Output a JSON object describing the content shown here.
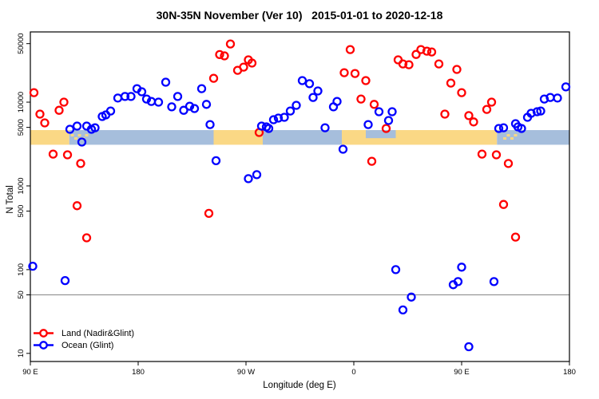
{
  "chart_data": {
    "type": "scatter",
    "title": "30N-35N November (Ver 10)   2015-01-01 to 2020-12-18",
    "xlabel": "Longitude (deg E)",
    "ylabel": "N Total",
    "x_axis": {
      "lim": [
        90,
        540
      ],
      "ticks": [
        {
          "deg": 90,
          "label": "90 E"
        },
        {
          "deg": 180,
          "label": "180"
        },
        {
          "deg": 270,
          "label": "90 W"
        },
        {
          "deg": 360,
          "label": "0"
        },
        {
          "deg": 450,
          "label": "90 E"
        },
        {
          "deg": 540,
          "label": "180"
        }
      ]
    },
    "y_axis": {
      "scale": "log",
      "lim": [
        8,
        69000
      ],
      "ticks": [
        {
          "n": 50000,
          "label": "50000"
        },
        {
          "n": 10000,
          "label": "10000"
        },
        {
          "n": 5000,
          "label": "5000"
        },
        {
          "n": 1000,
          "label": "1000"
        },
        {
          "n": 500,
          "label": "500"
        },
        {
          "n": 100,
          "label": "100"
        },
        {
          "n": 50,
          "label": "50"
        },
        {
          "n": 10,
          "label": "10"
        }
      ]
    },
    "reference_line": {
      "n": 50,
      "color": "#878787"
    },
    "map_strip": {
      "n_range": [
        3100,
        4640
      ],
      "land_color": "#FAD885",
      "ocean_color": "#A6BEDC",
      "segments": [
        {
          "from": 90,
          "to": 122.5,
          "surface": "land"
        },
        {
          "from": 122.5,
          "to": 243,
          "surface": "ocean"
        },
        {
          "from": 243,
          "to": 284,
          "surface": "land"
        },
        {
          "from": 284,
          "to": 350,
          "surface": "ocean"
        },
        {
          "from": 350,
          "to": 479.5,
          "surface": "land"
        },
        {
          "from": 479.5,
          "to": 540,
          "surface": "ocean"
        }
      ],
      "island_specks_deg": [
        125,
        128,
        131,
        134,
        137,
        486,
        489,
        492,
        495
      ],
      "sea_notch": {
        "from": 370,
        "to": 395
      }
    },
    "series": [
      {
        "name": "Land (Nadir&Glint)",
        "color": "#FF0000",
        "points": [
          [
            93,
            13000
          ],
          [
            98,
            7200
          ],
          [
            102,
            5650
          ],
          [
            114,
            8000
          ],
          [
            118,
            10000
          ],
          [
            109,
            2400
          ],
          [
            121,
            2350
          ],
          [
            132,
            1850
          ],
          [
            129,
            580
          ],
          [
            137,
            240
          ],
          [
            239,
            470
          ],
          [
            243,
            19300
          ],
          [
            248,
            37000
          ],
          [
            252,
            35700
          ],
          [
            257,
            49500
          ],
          [
            263,
            24000
          ],
          [
            268,
            26200
          ],
          [
            272,
            32000
          ],
          [
            275,
            29300
          ],
          [
            281,
            4350
          ],
          [
            352,
            22500
          ],
          [
            357,
            42500
          ],
          [
            361,
            22000
          ],
          [
            366,
            10900
          ],
          [
            370,
            18100
          ],
          [
            377,
            9400
          ],
          [
            375,
            1970
          ],
          [
            387,
            4850
          ],
          [
            397,
            32000
          ],
          [
            401,
            28600
          ],
          [
            406,
            28000
          ],
          [
            412,
            37200
          ],
          [
            416,
            42500
          ],
          [
            421,
            40700
          ],
          [
            425,
            39800
          ],
          [
            431,
            28600
          ],
          [
            436,
            7200
          ],
          [
            441,
            16900
          ],
          [
            446,
            24600
          ],
          [
            450,
            13000
          ],
          [
            456,
            6900
          ],
          [
            460,
            5800
          ],
          [
            467,
            2400
          ],
          [
            471,
            8200
          ],
          [
            475,
            10000
          ],
          [
            479,
            2350
          ],
          [
            485,
            600
          ],
          [
            489,
            1850
          ],
          [
            495,
            245
          ]
        ]
      },
      {
        "name": "Ocean (Glint)",
        "color": "#0000FF",
        "points": [
          [
            92,
            110
          ],
          [
            119,
            74
          ],
          [
            123,
            4740
          ],
          [
            129,
            5180
          ],
          [
            133,
            3340
          ],
          [
            137,
            5180
          ],
          [
            141,
            4740
          ],
          [
            144,
            4950
          ],
          [
            150,
            6740
          ],
          [
            153,
            7050
          ],
          [
            157,
            7850
          ],
          [
            163,
            11200
          ],
          [
            169,
            11700
          ],
          [
            174,
            11700
          ],
          [
            179,
            14500
          ],
          [
            183,
            13300
          ],
          [
            187,
            10900
          ],
          [
            191,
            10200
          ],
          [
            197,
            10000
          ],
          [
            203,
            17300
          ],
          [
            208,
            8800
          ],
          [
            213,
            11700
          ],
          [
            218,
            8000
          ],
          [
            223,
            8950
          ],
          [
            227,
            8400
          ],
          [
            233,
            14500
          ],
          [
            237,
            9400
          ],
          [
            240,
            5400
          ],
          [
            245,
            2000
          ],
          [
            272,
            1220
          ],
          [
            279,
            1360
          ],
          [
            283,
            5180
          ],
          [
            287,
            5070
          ],
          [
            289,
            4850
          ],
          [
            293,
            6170
          ],
          [
            297,
            6450
          ],
          [
            302,
            6590
          ],
          [
            307,
            7850
          ],
          [
            312,
            9160
          ],
          [
            317,
            18100
          ],
          [
            323,
            16600
          ],
          [
            326,
            11400
          ],
          [
            330,
            13600
          ],
          [
            336,
            4950
          ],
          [
            343,
            8800
          ],
          [
            346,
            10200
          ],
          [
            351,
            2740
          ],
          [
            372,
            5400
          ],
          [
            381,
            7690
          ],
          [
            389,
            6040
          ],
          [
            392,
            7690
          ],
          [
            395,
            100
          ],
          [
            401,
            33
          ],
          [
            408,
            47
          ],
          [
            443,
            66
          ],
          [
            447,
            72
          ],
          [
            450,
            107
          ],
          [
            456,
            12
          ],
          [
            477,
            72
          ],
          [
            481,
            4850
          ],
          [
            485,
            4950
          ],
          [
            495,
            5530
          ],
          [
            497,
            5070
          ],
          [
            500,
            4850
          ],
          [
            505,
            6590
          ],
          [
            508,
            7360
          ],
          [
            513,
            7690
          ],
          [
            516,
            7850
          ],
          [
            519,
            10900
          ],
          [
            524,
            11400
          ],
          [
            530,
            11200
          ],
          [
            537,
            15200
          ]
        ]
      }
    ],
    "legend": {
      "position": "bottom-left"
    },
    "marker": {
      "shape": "open-circle",
      "radius": 4.5,
      "stroke_width": 2.3
    }
  }
}
